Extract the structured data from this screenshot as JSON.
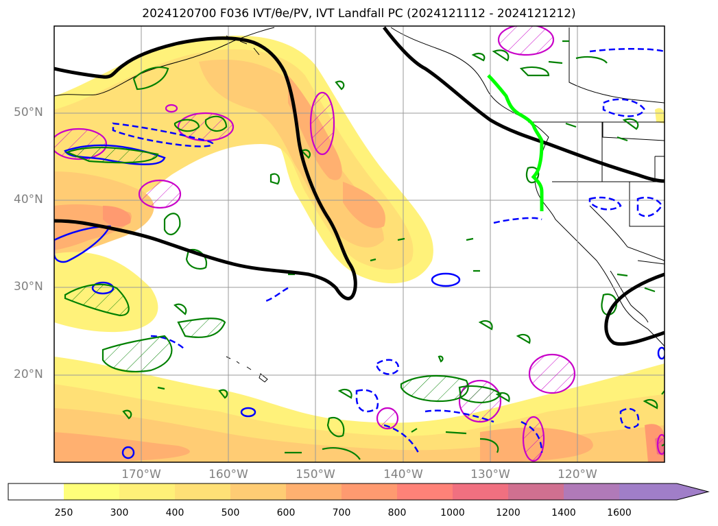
{
  "title": "2024120700 F036 IVT/θe/PV, IVT Landfall PC (2024121112 - 2024121212)",
  "map": {
    "lat_labels": [
      "50°N",
      "40°N",
      "30°N",
      "20°N"
    ],
    "lon_labels": [
      "170°W",
      "160°W",
      "150°W",
      "140°W",
      "130°W",
      "120°W"
    ]
  },
  "colorbar": {
    "ticks": [
      "250",
      "300",
      "400",
      "500",
      "600",
      "700",
      "800",
      "1000",
      "1200",
      "1400",
      "1600"
    ],
    "colors": [
      "#ffff7a",
      "#fff078",
      "#ffe076",
      "#ffcc74",
      "#ffb070",
      "#ff9a70",
      "#ff8278",
      "#f07080",
      "#d07090",
      "#b07ab8",
      "#a07ec8"
    ]
  },
  "colors": {
    "landfall_line": "#00ff00",
    "pc_contour": "#000000",
    "pv_positive": "#008000",
    "pv_negative": "#0000ff",
    "theta_e": "#c800c8"
  }
}
